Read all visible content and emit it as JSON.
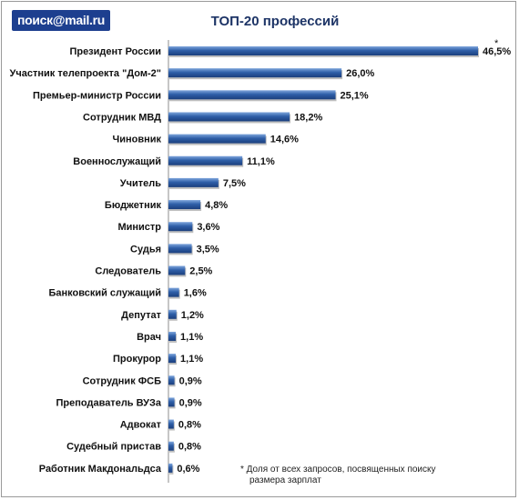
{
  "logo": {
    "text": "поиск@mail.ru"
  },
  "chart_data": {
    "type": "bar",
    "orientation": "horizontal",
    "title": "ТОП-20 профессий",
    "categories": [
      "Президент России",
      "Участник телепроекта  \"Дом-2\"",
      "Премьер-министр России",
      "Сотрудник МВД",
      "Чиновник",
      "Военнослужащий",
      "Учитель",
      "Бюджетник",
      "Министр",
      "Судья",
      "Следователь",
      "Банковский служащий",
      "Депутат",
      "Врач",
      "Прокурор",
      "Сотрудник ФСБ",
      "Преподаватель  ВУЗа",
      "Адвокат",
      "Судебный пристав",
      "Работник Макдональдса"
    ],
    "values": [
      46.5,
      26.0,
      25.1,
      18.2,
      14.6,
      11.1,
      7.5,
      4.8,
      3.6,
      3.5,
      2.5,
      1.6,
      1.2,
      1.1,
      1.1,
      0.9,
      0.9,
      0.8,
      0.8,
      0.6
    ],
    "value_labels": [
      "46,5%",
      "26,0%",
      "25,1%",
      "18,2%",
      "14,6%",
      "11,1%",
      "7,5%",
      "4,8%",
      "3,6%",
      "3,5%",
      "2,5%",
      "1,6%",
      "1,2%",
      "1,1%",
      "1,1%",
      "0,9%",
      "0,9%",
      "0,8%",
      "0,8%",
      "0,6%"
    ],
    "xlim": [
      0,
      46.5
    ],
    "grid": false,
    "legend": "none",
    "bar_color": "#2f5fa8",
    "bar_color_light": "#7fa6dc",
    "bar_color_dark": "#1b3f7d"
  },
  "annotation": {
    "marker": "*",
    "footnote_line1": "* Доля от всех запросов, посвященных поиску",
    "footnote_line2": "размера зарплат"
  }
}
